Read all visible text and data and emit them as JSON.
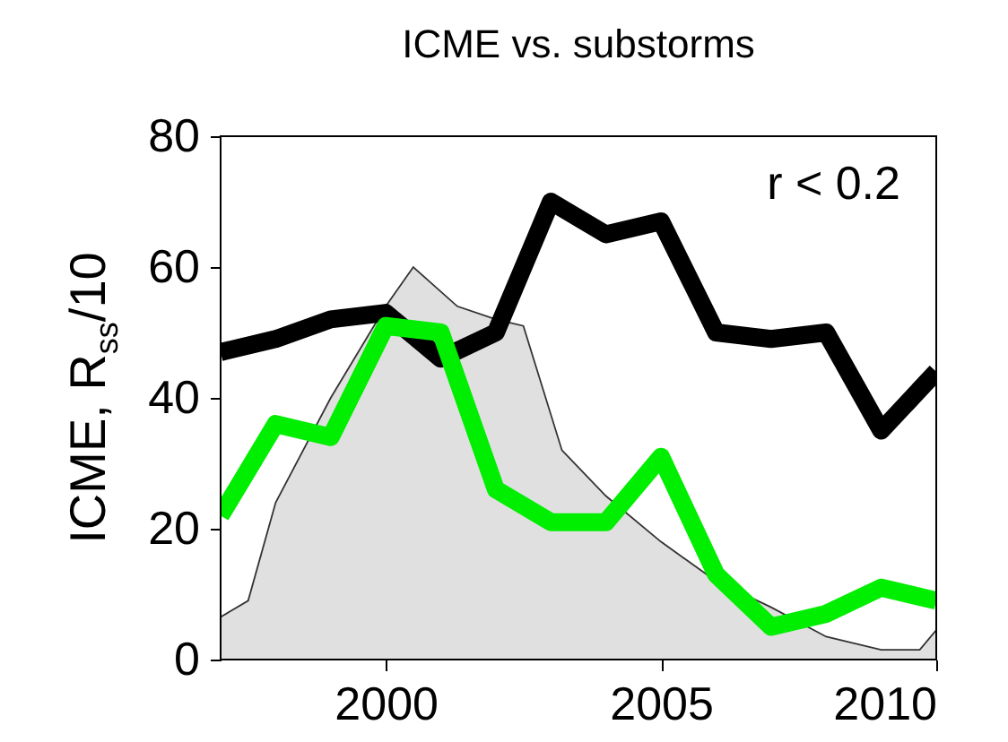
{
  "chart_data": {
    "type": "line",
    "title": "ICME vs. substorms",
    "ylabel": "ICME,  R$_{ss}$/10",
    "annotations": [
      "r < 0.2"
    ],
    "xlim": [
      1997,
      2010
    ],
    "xticks": [
      2000,
      2005,
      2010
    ],
    "ylim": [
      0,
      80
    ],
    "yticks": [
      0,
      20,
      40,
      60,
      80
    ],
    "grid": false,
    "line_style": "solid",
    "marker": "none",
    "series": [
      {
        "type": "area",
        "color": "#e0e0e0",
        "x": [
          1997,
          1997.5,
          1998,
          1999,
          2000,
          2000.5,
          2001.3,
          2002,
          2002.5,
          2003.2,
          2004,
          2005,
          2006,
          2007,
          2008,
          2009,
          2009.7,
          2010
        ],
        "values": [
          6.5,
          9,
          24,
          40,
          54,
          60,
          54,
          52,
          51,
          32,
          25,
          18,
          12,
          8,
          3.5,
          1.5,
          1.5,
          4.5
        ]
      },
      {
        "color": "#000000",
        "x": [
          1997,
          1998,
          1999,
          2000,
          2001,
          2002,
          2003,
          2004,
          2005,
          2006,
          2007,
          2008,
          2009,
          2010
        ],
        "values": [
          47,
          49,
          52,
          53,
          46,
          50,
          70,
          65,
          67,
          50,
          49,
          50,
          35,
          44
        ]
      },
      {
        "color": "#00ee00",
        "x": [
          1997,
          1998,
          1999,
          2000,
          2001,
          2002,
          2003,
          2004,
          2005,
          2006,
          2007,
          2008,
          2009,
          2010
        ],
        "values": [
          22,
          36,
          34,
          51,
          50,
          26,
          21,
          21,
          31,
          13,
          5,
          7,
          11,
          9
        ]
      }
    ]
  }
}
